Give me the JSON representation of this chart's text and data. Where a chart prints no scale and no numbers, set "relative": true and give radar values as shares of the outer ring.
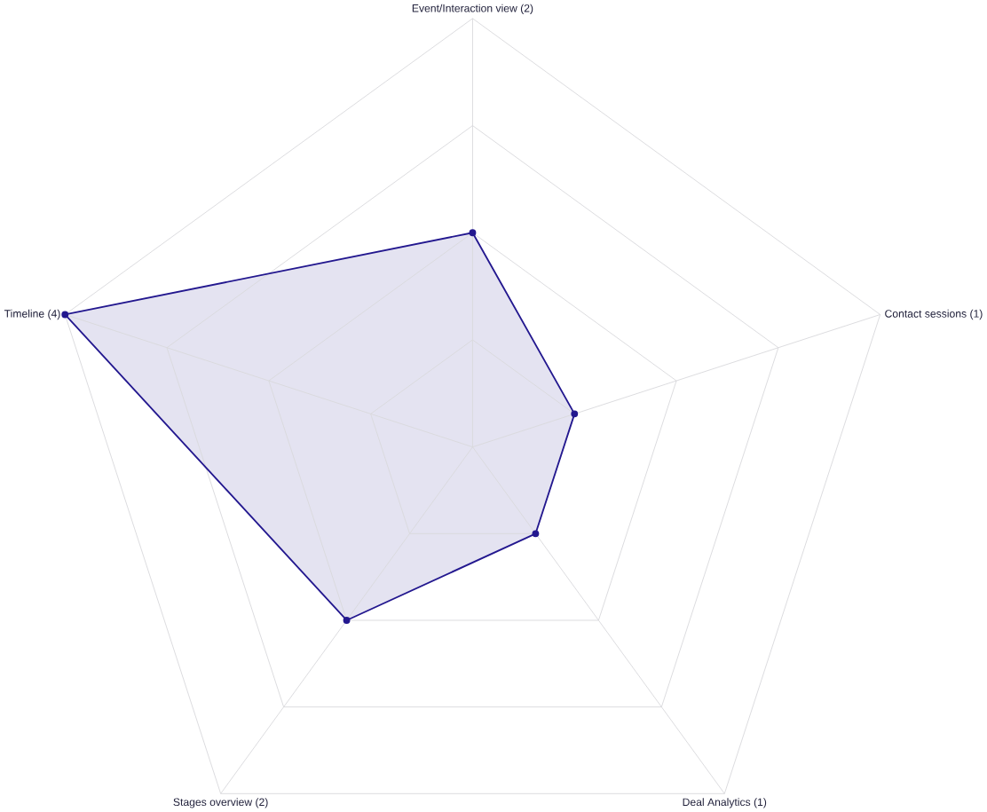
{
  "chart_data": {
    "type": "radar",
    "categories": [
      "Event/Interaction view (2)",
      "Contact sessions (1)",
      "Deal Analytics (1)",
      "Stages overview (2)",
      "Timeline (4)"
    ],
    "series": [
      {
        "color": "#23188f",
        "values": [
          0.5,
          0.25,
          0.25,
          0.5,
          1
        ]
      }
    ],
    "relative": true,
    "marker": "circle",
    "grid": true
  }
}
